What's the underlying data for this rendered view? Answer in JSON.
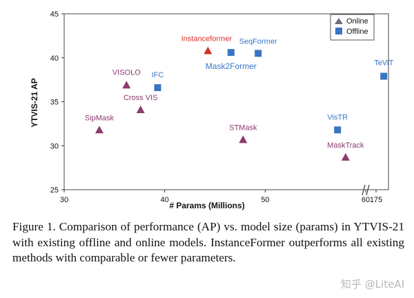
{
  "chart_data": {
    "type": "scatter",
    "title": "",
    "xlabel": "# Params (Millions)",
    "ylabel": "YTVIS-21 AP",
    "xlim": [
      30,
      175
    ],
    "ylim": [
      25,
      45
    ],
    "x_tick_labels": [
      "30",
      "40",
      "50",
      "60",
      "175"
    ],
    "y_tick_labels": [
      "45",
      "40",
      "35",
      "30",
      "25"
    ],
    "x_axis_break_between": [
      60,
      175
    ],
    "grid": false,
    "legend": {
      "position": "top-right",
      "entries": [
        "Online",
        "Offline"
      ]
    },
    "series": [
      {
        "name": "Online",
        "marker": "triangle",
        "color": "#8b3a6e",
        "highlight_color": "#d6312b",
        "points": [
          {
            "label": "Instanceformer",
            "x": 44.3,
            "y": 40.8,
            "highlight": true
          },
          {
            "label": "VISOLO",
            "x": 36.2,
            "y": 36.9
          },
          {
            "label": "Cross VIS",
            "x": 37.6,
            "y": 34.1
          },
          {
            "label": "SipMask",
            "x": 33.5,
            "y": 31.8
          },
          {
            "label": "STMask",
            "x": 47.8,
            "y": 30.7
          },
          {
            "label": "MaskTrack",
            "x": 58.0,
            "y": 28.7
          }
        ]
      },
      {
        "name": "Offline",
        "marker": "square",
        "color": "#3a74c4",
        "points": [
          {
            "label": "Mask2Former",
            "x": 46.6,
            "y": 40.6
          },
          {
            "label": "SeqFormer",
            "x": 49.3,
            "y": 40.5
          },
          {
            "label": "IFC",
            "x": 39.3,
            "y": 36.6
          },
          {
            "label": "TeViT",
            "x": 61.8,
            "y": 37.9
          },
          {
            "label": "VisTR",
            "x": 57.2,
            "y": 31.8
          }
        ]
      }
    ]
  },
  "caption": "Figure 1. Comparison of performance (AP) vs.  model size (params) in YTVIS-21 with existing offline and online models. InstanceFormer outperforms all existing methods with comparable or fewer parameters.",
  "watermark": "知乎 @LiteAI"
}
